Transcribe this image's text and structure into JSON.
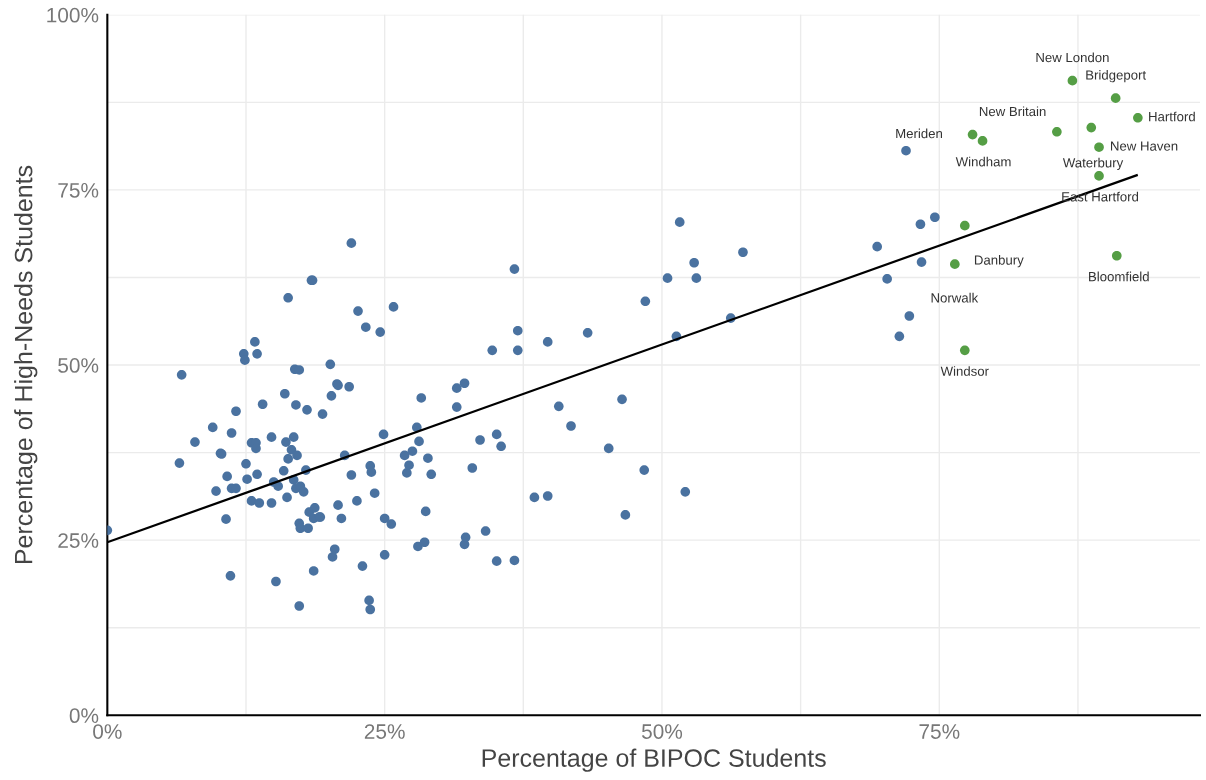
{
  "chart_data": {
    "type": "scatter",
    "xlabel": "Percentage of BIPOC Students",
    "ylabel": "Percentage of High-Needs Students",
    "xlim": [
      0,
      98.5
    ],
    "ylim": [
      0,
      100
    ],
    "xticks": [
      {
        "value": 0,
        "label": "0%"
      },
      {
        "value": 12.5,
        "label": null
      },
      {
        "value": 25,
        "label": "25%"
      },
      {
        "value": 37.5,
        "label": null
      },
      {
        "value": 50,
        "label": "50%"
      },
      {
        "value": 62.5,
        "label": null
      },
      {
        "value": 75,
        "label": "75%"
      },
      {
        "value": 87.5,
        "label": null
      }
    ],
    "yticks": [
      {
        "value": 0,
        "label": "0%"
      },
      {
        "value": 12.5,
        "label": null
      },
      {
        "value": 25,
        "label": "25%"
      },
      {
        "value": 37.5,
        "label": null
      },
      {
        "value": 50,
        "label": "50%"
      },
      {
        "value": 62.5,
        "label": null
      },
      {
        "value": 75,
        "label": "75%"
      },
      {
        "value": 87.5,
        "label": null
      },
      {
        "value": 100,
        "label": "100%"
      }
    ],
    "grid": true,
    "marker": "circle",
    "series": [
      {
        "color": "#4a72a0",
        "x": [
          0.0,
          6.5,
          6.7,
          7.9,
          9.5,
          9.8,
          10.2,
          10.3,
          10.8,
          10.7,
          11.2,
          11.2,
          11.1,
          11.6,
          11.6,
          12.3,
          12.4,
          12.5,
          12.6,
          13.0,
          13.0,
          13.3,
          13.4,
          13.5,
          13.4,
          13.5,
          13.7,
          14.0,
          14.8,
          14.8,
          15.0,
          15.2,
          15.4,
          15.9,
          16.0,
          16.1,
          16.2,
          16.3,
          16.3,
          16.6,
          16.8,
          16.8,
          16.9,
          17.0,
          17.1,
          17.3,
          17.3,
          17.4,
          17.3,
          17.0,
          17.4,
          17.7,
          17.9,
          18.0,
          18.1,
          18.2,
          18.4,
          18.5,
          18.6,
          18.7,
          18.6,
          19.1,
          19.2,
          19.4,
          20.2,
          20.1,
          20.3,
          20.5,
          20.7,
          20.8,
          20.8,
          21.1,
          21.4,
          21.8,
          22.0,
          22.0,
          22.5,
          22.6,
          23.0,
          23.3,
          23.6,
          23.7,
          23.7,
          23.8,
          24.1,
          24.6,
          24.9,
          25.0,
          25.0,
          25.6,
          25.8,
          26.8,
          27.0,
          27.2,
          27.5,
          27.9,
          28.0,
          28.1,
          28.3,
          28.6,
          28.7,
          28.9,
          29.2,
          31.5,
          31.5,
          32.2,
          32.2,
          32.3,
          32.9,
          33.6,
          34.1,
          34.7,
          35.1,
          35.1,
          35.5,
          36.7,
          36.7,
          37.0,
          37.0,
          38.5,
          39.7,
          39.7,
          40.7,
          41.8,
          43.3,
          45.2,
          46.4,
          46.7,
          48.4,
          48.5,
          50.5,
          51.3,
          51.6,
          52.1,
          52.9,
          53.1,
          56.2,
          57.3,
          69.4,
          70.3,
          71.4,
          72.0,
          72.3,
          73.3,
          73.4,
          74.6
        ],
        "values": [
          26.4,
          36.0,
          48.6,
          39.0,
          41.1,
          32.0,
          37.4,
          37.3,
          34.1,
          28.0,
          40.3,
          32.4,
          19.9,
          43.4,
          32.4,
          51.6,
          50.7,
          35.9,
          33.7,
          38.9,
          30.6,
          53.3,
          38.9,
          51.6,
          38.1,
          34.4,
          30.3,
          44.4,
          39.7,
          30.3,
          33.3,
          19.1,
          32.7,
          34.9,
          45.9,
          39.0,
          31.1,
          59.6,
          36.6,
          37.9,
          39.7,
          33.6,
          49.4,
          44.3,
          37.1,
          27.4,
          15.6,
          26.7,
          49.3,
          32.4,
          32.7,
          31.9,
          35.0,
          43.6,
          26.7,
          29.0,
          62.1,
          62.1,
          20.6,
          29.6,
          28.1,
          28.3,
          28.3,
          43.0,
          45.6,
          50.1,
          22.6,
          23.7,
          47.3,
          47.1,
          30.0,
          28.1,
          37.1,
          46.9,
          34.3,
          67.4,
          30.6,
          57.7,
          21.3,
          55.4,
          16.4,
          15.1,
          35.6,
          34.7,
          31.7,
          54.7,
          40.1,
          22.9,
          28.1,
          27.3,
          58.3,
          37.1,
          34.6,
          35.7,
          37.7,
          41.1,
          24.1,
          39.1,
          45.3,
          24.7,
          29.1,
          36.7,
          34.4,
          44.0,
          46.7,
          47.4,
          24.4,
          25.4,
          35.3,
          39.3,
          26.3,
          52.1,
          40.1,
          22.0,
          38.4,
          63.7,
          22.1,
          54.9,
          52.1,
          31.1,
          31.3,
          53.3,
          44.1,
          41.3,
          54.6,
          38.1,
          45.1,
          28.6,
          35.0,
          59.1,
          62.4,
          54.1,
          70.4,
          31.9,
          64.6,
          62.4,
          56.7,
          66.1,
          66.9,
          62.3,
          54.1,
          80.6,
          57.0,
          70.1,
          64.7,
          71.1
        ]
      },
      {
        "color": "#559e45",
        "x": [
          87.0,
          90.9,
          92.9,
          78.0,
          78.9,
          85.6,
          88.7,
          89.4,
          89.4,
          77.3,
          76.4,
          91.0,
          77.3
        ],
        "values": [
          90.6,
          88.1,
          85.3,
          82.9,
          82.0,
          83.3,
          83.9,
          81.1,
          77.0,
          69.9,
          64.4,
          65.6,
          52.1
        ]
      },
      {
        "type": "line",
        "marker": "none",
        "color": "#000000",
        "x": [
          0,
          92.8
        ],
        "values": [
          24.7,
          77.1
        ]
      }
    ],
    "annotations": [
      {
        "text": "New London",
        "x": 87.0,
        "y": 90.6
      },
      {
        "text": "Bridgeport",
        "x": 90.9,
        "y": 88.1
      },
      {
        "text": "New Britain",
        "x": 78.0,
        "y": 82.9
      },
      {
        "text": "Hartford",
        "x": 92.9,
        "y": 85.3
      },
      {
        "text": "Meriden",
        "x": 72.0,
        "y": 80.6
      },
      {
        "text": "New Haven",
        "x": 89.4,
        "y": 81.1
      },
      {
        "text": "Waterbury",
        "x": 89.4,
        "y": 77.0
      },
      {
        "text": "Windham",
        "x": 78.9,
        "y": 82.0
      },
      {
        "text": "East Hartford",
        "x": 89.4,
        "y": 77.0
      },
      {
        "text": "Danbury",
        "x": 76.4,
        "y": 64.4
      },
      {
        "text": "Bloomfield",
        "x": 91.0,
        "y": 65.6
      },
      {
        "text": "Norwalk",
        "x": 72.3,
        "y": 57.0
      },
      {
        "text": "Windsor",
        "x": 77.3,
        "y": 52.1
      }
    ]
  }
}
